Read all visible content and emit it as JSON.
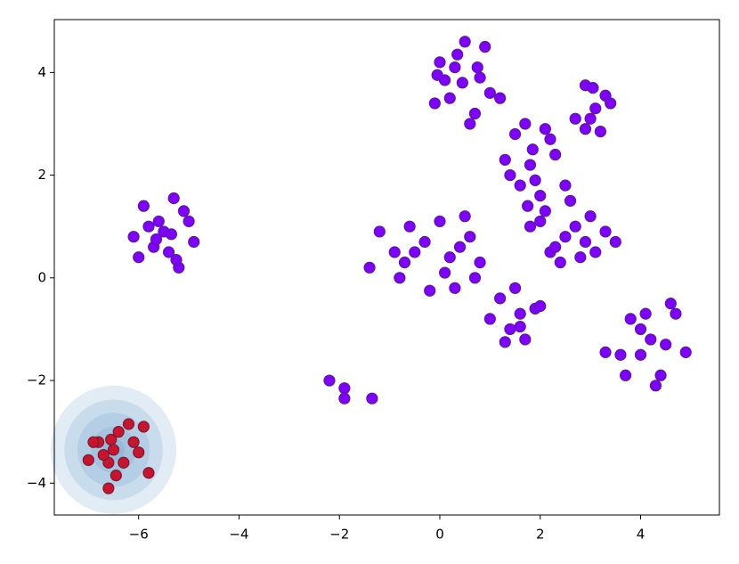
{
  "chart_data": {
    "type": "scatter",
    "xlim": [
      -7.68,
      5.57
    ],
    "ylim": [
      -4.62,
      5.03
    ],
    "xticks": [
      {
        "value": -6,
        "label": "−6"
      },
      {
        "value": -4,
        "label": "−4"
      },
      {
        "value": -2,
        "label": "−2"
      },
      0,
      2,
      4
    ],
    "yticks": [
      {
        "value": -4,
        "label": "−4"
      },
      {
        "value": -2,
        "label": "−2"
      },
      0,
      2,
      4
    ],
    "contours": {
      "color": "#4a86c0",
      "cx": -6.5,
      "cy": -3.35,
      "radii": [
        1.25,
        0.98,
        0.72,
        0.45,
        0.22
      ]
    },
    "series": [
      {
        "color": "#7f00ff",
        "edgecolor": "#5a1a9a",
        "x": [
          -5.5,
          -5.9,
          -5.1,
          -5.3,
          -5.7,
          -6.0,
          -4.9,
          -5.4,
          -5.6,
          -5.2,
          -5.8,
          -5.0,
          -5.35,
          -6.1,
          -5.25,
          -5.65
        ],
        "y": [
          0.9,
          1.4,
          1.3,
          1.55,
          0.6,
          0.4,
          0.7,
          0.5,
          1.1,
          0.2,
          1.0,
          1.1,
          0.85,
          0.8,
          0.35,
          0.75
        ]
      },
      {
        "color": "#7f00ff",
        "edgecolor": "#5a1a9a",
        "x": [
          0.5,
          0.0,
          0.9,
          0.3,
          0.7,
          -0.1,
          1.0,
          0.45,
          0.2,
          0.8,
          1.2,
          0.6,
          0.1,
          0.35,
          -0.05,
          0.75
        ],
        "y": [
          4.6,
          4.2,
          4.5,
          4.1,
          3.2,
          3.4,
          3.6,
          3.8,
          3.5,
          3.9,
          3.5,
          3.0,
          3.85,
          4.35,
          3.95,
          4.1
        ]
      },
      {
        "color": "#7f00ff",
        "edgecolor": "#5a1a9a",
        "x": [
          1.8,
          1.5,
          2.1,
          1.7,
          1.9,
          2.3,
          1.3,
          2.0,
          1.6,
          2.2,
          1.4,
          2.5,
          1.85,
          1.75
        ],
        "y": [
          2.2,
          2.8,
          2.9,
          3.0,
          1.9,
          2.4,
          2.3,
          1.6,
          1.8,
          2.7,
          2.0,
          1.8,
          2.5,
          1.4
        ]
      },
      {
        "color": "#7f00ff",
        "edgecolor": "#5a1a9a",
        "x": [
          2.9,
          3.05,
          3.3,
          3.4,
          3.1,
          3.0,
          2.9,
          3.2,
          2.7
        ],
        "y": [
          3.75,
          3.7,
          3.55,
          3.4,
          3.3,
          3.1,
          2.9,
          2.85,
          3.1
        ]
      },
      {
        "color": "#7f00ff",
        "edgecolor": "#5a1a9a",
        "x": [
          2.5,
          2.0,
          3.0,
          2.2,
          2.8,
          3.3,
          2.6,
          2.4,
          1.8,
          2.9,
          3.5,
          2.1,
          2.7,
          2.3,
          3.1
        ],
        "y": [
          0.8,
          1.1,
          1.2,
          0.5,
          0.4,
          0.9,
          1.5,
          0.3,
          1.0,
          0.7,
          0.7,
          1.3,
          1.0,
          0.6,
          0.5
        ]
      },
      {
        "color": "#7f00ff",
        "edgecolor": "#5a1a9a",
        "x": [
          -0.5,
          0.0,
          0.5,
          -1.2,
          -1.4,
          -0.8,
          0.3,
          0.6,
          0.8,
          -0.3,
          0.2,
          -0.6,
          0.7,
          -0.9,
          0.1,
          -0.2,
          0.4,
          -0.7
        ],
        "y": [
          0.5,
          1.1,
          1.2,
          0.9,
          0.2,
          0.0,
          -0.2,
          0.8,
          0.3,
          0.7,
          0.4,
          1.0,
          0.0,
          0.5,
          0.1,
          -0.25,
          0.6,
          0.3
        ]
      },
      {
        "color": "#7f00ff",
        "edgecolor": "#5a1a9a",
        "x": [
          1.6,
          1.2,
          1.9,
          1.4,
          1.7,
          1.0,
          1.5,
          1.3,
          2.0,
          1.6
        ],
        "y": [
          -0.7,
          -0.4,
          -0.6,
          -1.0,
          -1.2,
          -0.8,
          -0.2,
          -1.25,
          -0.55,
          -0.95
        ]
      },
      {
        "color": "#7f00ff",
        "edgecolor": "#5a1a9a",
        "x": [
          4.2,
          3.8,
          4.6,
          4.0,
          4.4,
          3.6,
          4.3,
          4.9,
          3.3,
          4.0,
          4.5,
          4.1,
          3.7,
          4.7
        ],
        "y": [
          -1.2,
          -0.8,
          -0.5,
          -1.5,
          -1.9,
          -1.5,
          -2.1,
          -1.45,
          -1.45,
          -1.0,
          -1.3,
          -0.7,
          -1.9,
          -0.7
        ]
      },
      {
        "color": "#7f00ff",
        "edgecolor": "#5a1a9a",
        "x": [
          -2.2,
          -1.9,
          -1.9,
          -1.35
        ],
        "y": [
          -2.0,
          -2.15,
          -2.35,
          -2.35
        ]
      },
      {
        "color": "#c8142e",
        "edgecolor": "#7a1a30",
        "x": [
          -6.5,
          -6.8,
          -6.2,
          -6.4,
          -6.6,
          -6.1,
          -6.9,
          -6.3,
          -6.7,
          -6.0,
          -6.45,
          -5.9,
          -6.55,
          -6.6,
          -7.0,
          -5.8
        ],
        "y": [
          -3.35,
          -3.2,
          -2.85,
          -3.0,
          -3.6,
          -3.2,
          -3.2,
          -3.6,
          -3.45,
          -3.4,
          -3.85,
          -2.9,
          -3.15,
          -4.1,
          -3.55,
          -3.8
        ]
      }
    ]
  }
}
